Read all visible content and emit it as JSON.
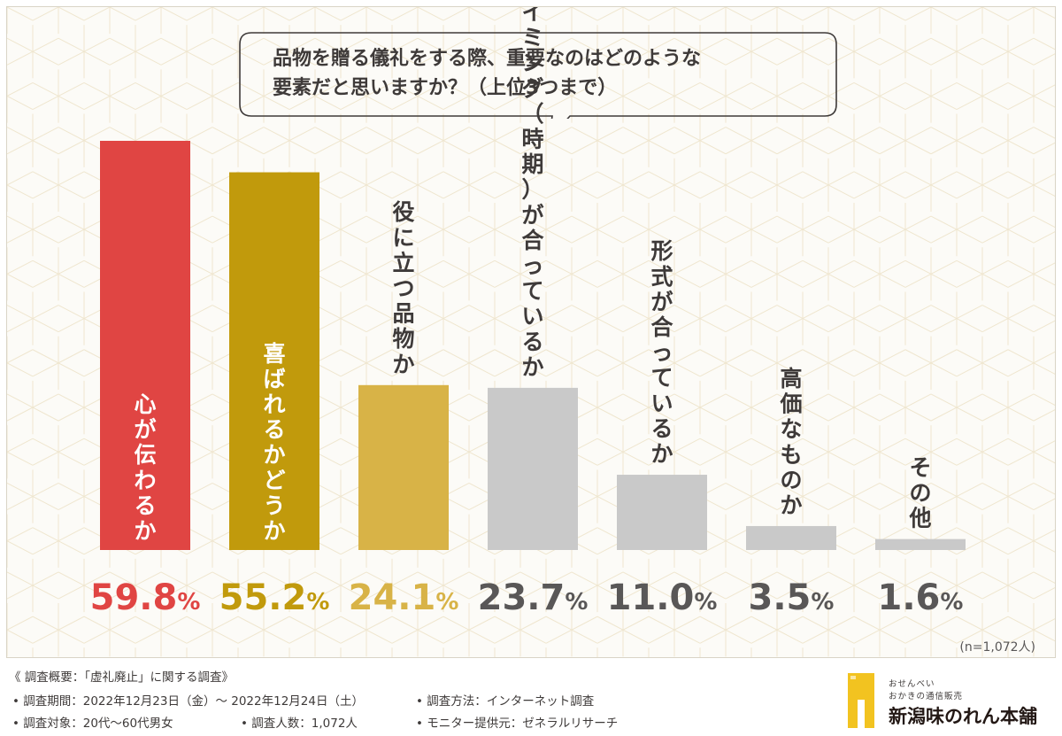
{
  "chart_data": {
    "type": "bar",
    "title_lines": [
      "品物を贈る儀礼をする際、重要なのはどのような",
      "要素だと思いますか？（上位3つまで）"
    ],
    "categories": [
      "心が伝わるか",
      "喜ばれるかどうか",
      "役に立つ品物か",
      "タイミング（時期）が合っているか",
      "形式が合っているか",
      "高価なものか",
      "その他"
    ],
    "values": [
      59.8,
      55.2,
      24.1,
      23.7,
      11.0,
      3.5,
      1.6
    ],
    "value_labels": [
      "59.8",
      "55.2",
      "24.1",
      "23.7",
      "11.0",
      "3.5",
      "1.6"
    ],
    "unit": "%",
    "colors": [
      "#e04543",
      "#c19a0c",
      "#d8b347",
      "#c9c9c9",
      "#c9c9c9",
      "#c9c9c9",
      "#c9c9c9"
    ],
    "label_colors": [
      "#ffffff",
      "#ffffff",
      "#c19a0c",
      "#3e3a39",
      "#3e3a39",
      "#3e3a39",
      "#3e3a39"
    ],
    "value_colors": [
      "#e04543",
      "#c19a0c",
      "#d8b347",
      "#595757",
      "#595757",
      "#595757",
      "#595757"
    ],
    "ylim": [
      0,
      65
    ],
    "xlabel": "",
    "ylabel": "",
    "sample_note": "(n=1,072人)"
  },
  "footer": {
    "line1": "《 調査概要：「虚礼廃止」に関する調査》",
    "line2a": "• 調査期間：2022年12月23日（金）〜 2022年12月24日（土）",
    "line2b": "• 調査方法：インターネット調査",
    "line3a": "• 調査対象：20代〜60代男女",
    "line3b": "• 調査人数：1,072人",
    "line3c": "• モニター提供元：ゼネラルリサーチ"
  },
  "logo": {
    "tag1": "おせんべい",
    "tag2": "おかきの通信販売",
    "name": "新潟味のれん本舗"
  }
}
